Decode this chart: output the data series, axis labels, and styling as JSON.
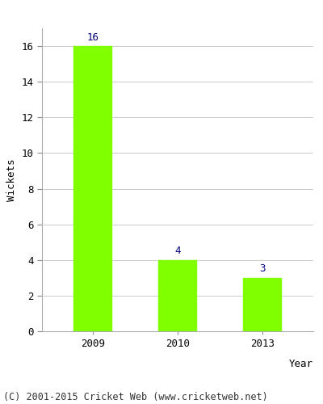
{
  "categories": [
    "2009",
    "2010",
    "2013"
  ],
  "values": [
    16,
    4,
    3
  ],
  "bar_color": "#7FFF00",
  "bar_edge_color": "#7FFF00",
  "label_color": "#000080",
  "xlabel": "Year",
  "ylabel": "Wickets",
  "ylim": [
    0,
    17
  ],
  "yticks": [
    0,
    2,
    4,
    6,
    8,
    10,
    12,
    14,
    16
  ],
  "footnote": "(C) 2001-2015 Cricket Web (www.cricketweb.net)",
  "tick_fontsize": 9,
  "axis_label_fontsize": 9,
  "footnote_fontsize": 8.5,
  "value_label_fontsize": 9,
  "background_color": "#ffffff",
  "grid_color": "#cccccc",
  "spine_color": "#aaaaaa"
}
